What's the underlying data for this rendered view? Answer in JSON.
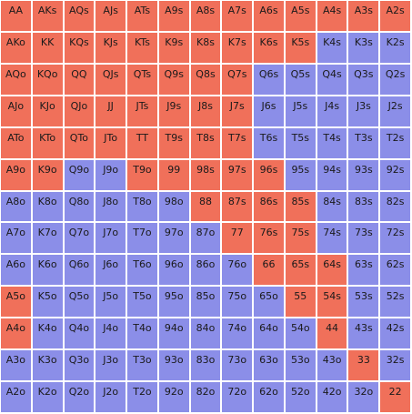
{
  "colors": {
    "raise": "#f0705a",
    "fold": "#8b8ee8"
  },
  "rows": [
    [
      [
        "AA",
        "r"
      ],
      [
        "AKs",
        "r"
      ],
      [
        "AQs",
        "r"
      ],
      [
        "AJs",
        "r"
      ],
      [
        "ATs",
        "r"
      ],
      [
        "A9s",
        "r"
      ],
      [
        "A8s",
        "r"
      ],
      [
        "A7s",
        "r"
      ],
      [
        "A6s",
        "r"
      ],
      [
        "A5s",
        "r"
      ],
      [
        "A4s",
        "r"
      ],
      [
        "A3s",
        "r"
      ],
      [
        "A2s",
        "r"
      ]
    ],
    [
      [
        "AKo",
        "r"
      ],
      [
        "KK",
        "r"
      ],
      [
        "KQs",
        "r"
      ],
      [
        "KJs",
        "r"
      ],
      [
        "KTs",
        "r"
      ],
      [
        "K9s",
        "r"
      ],
      [
        "K8s",
        "r"
      ],
      [
        "K7s",
        "r"
      ],
      [
        "K6s",
        "r"
      ],
      [
        "K5s",
        "r"
      ],
      [
        "K4s",
        "f"
      ],
      [
        "K3s",
        "f"
      ],
      [
        "K2s",
        "f"
      ]
    ],
    [
      [
        "AQo",
        "r"
      ],
      [
        "KQo",
        "r"
      ],
      [
        "QQ",
        "r"
      ],
      [
        "QJs",
        "r"
      ],
      [
        "QTs",
        "r"
      ],
      [
        "Q9s",
        "r"
      ],
      [
        "Q8s",
        "r"
      ],
      [
        "Q7s",
        "r"
      ],
      [
        "Q6s",
        "f"
      ],
      [
        "Q5s",
        "f"
      ],
      [
        "Q4s",
        "f"
      ],
      [
        "Q3s",
        "f"
      ],
      [
        "Q2s",
        "f"
      ]
    ],
    [
      [
        "AJo",
        "r"
      ],
      [
        "KJo",
        "r"
      ],
      [
        "QJo",
        "r"
      ],
      [
        "JJ",
        "r"
      ],
      [
        "JTs",
        "r"
      ],
      [
        "J9s",
        "r"
      ],
      [
        "J8s",
        "r"
      ],
      [
        "J7s",
        "r"
      ],
      [
        "J6s",
        "f"
      ],
      [
        "J5s",
        "f"
      ],
      [
        "J4s",
        "f"
      ],
      [
        "J3s",
        "f"
      ],
      [
        "J2s",
        "f"
      ]
    ],
    [
      [
        "ATo",
        "r"
      ],
      [
        "KTo",
        "r"
      ],
      [
        "QTo",
        "r"
      ],
      [
        "JTo",
        "r"
      ],
      [
        "TT",
        "r"
      ],
      [
        "T9s",
        "r"
      ],
      [
        "T8s",
        "r"
      ],
      [
        "T7s",
        "r"
      ],
      [
        "T6s",
        "f"
      ],
      [
        "T5s",
        "f"
      ],
      [
        "T4s",
        "f"
      ],
      [
        "T3s",
        "f"
      ],
      [
        "T2s",
        "f"
      ]
    ],
    [
      [
        "A9o",
        "r"
      ],
      [
        "K9o",
        "r"
      ],
      [
        "Q9o",
        "f"
      ],
      [
        "J9o",
        "f"
      ],
      [
        "T9o",
        "r"
      ],
      [
        "99",
        "r"
      ],
      [
        "98s",
        "r"
      ],
      [
        "97s",
        "r"
      ],
      [
        "96s",
        "r"
      ],
      [
        "95s",
        "f"
      ],
      [
        "94s",
        "f"
      ],
      [
        "93s",
        "f"
      ],
      [
        "92s",
        "f"
      ]
    ],
    [
      [
        "A8o",
        "f"
      ],
      [
        "K8o",
        "f"
      ],
      [
        "Q8o",
        "f"
      ],
      [
        "J8o",
        "f"
      ],
      [
        "T8o",
        "f"
      ],
      [
        "98o",
        "f"
      ],
      [
        "88",
        "r"
      ],
      [
        "87s",
        "r"
      ],
      [
        "86s",
        "r"
      ],
      [
        "85s",
        "r"
      ],
      [
        "84s",
        "f"
      ],
      [
        "83s",
        "f"
      ],
      [
        "82s",
        "f"
      ]
    ],
    [
      [
        "A7o",
        "f"
      ],
      [
        "K7o",
        "f"
      ],
      [
        "Q7o",
        "f"
      ],
      [
        "J7o",
        "f"
      ],
      [
        "T7o",
        "f"
      ],
      [
        "97o",
        "f"
      ],
      [
        "87o",
        "f"
      ],
      [
        "77",
        "r"
      ],
      [
        "76s",
        "r"
      ],
      [
        "75s",
        "r"
      ],
      [
        "74s",
        "f"
      ],
      [
        "73s",
        "f"
      ],
      [
        "72s",
        "f"
      ]
    ],
    [
      [
        "A6o",
        "f"
      ],
      [
        "K6o",
        "f"
      ],
      [
        "Q6o",
        "f"
      ],
      [
        "J6o",
        "f"
      ],
      [
        "T6o",
        "f"
      ],
      [
        "96o",
        "f"
      ],
      [
        "86o",
        "f"
      ],
      [
        "76o",
        "f"
      ],
      [
        "66",
        "r"
      ],
      [
        "65s",
        "r"
      ],
      [
        "64s",
        "r"
      ],
      [
        "63s",
        "f"
      ],
      [
        "62s",
        "f"
      ]
    ],
    [
      [
        "A5o",
        "r"
      ],
      [
        "K5o",
        "f"
      ],
      [
        "Q5o",
        "f"
      ],
      [
        "J5o",
        "f"
      ],
      [
        "T5o",
        "f"
      ],
      [
        "95o",
        "f"
      ],
      [
        "85o",
        "f"
      ],
      [
        "75o",
        "f"
      ],
      [
        "65o",
        "f"
      ],
      [
        "55",
        "r"
      ],
      [
        "54s",
        "r"
      ],
      [
        "53s",
        "f"
      ],
      [
        "52s",
        "f"
      ]
    ],
    [
      [
        "A4o",
        "r"
      ],
      [
        "K4o",
        "f"
      ],
      [
        "Q4o",
        "f"
      ],
      [
        "J4o",
        "f"
      ],
      [
        "T4o",
        "f"
      ],
      [
        "94o",
        "f"
      ],
      [
        "84o",
        "f"
      ],
      [
        "74o",
        "f"
      ],
      [
        "64o",
        "f"
      ],
      [
        "54o",
        "f"
      ],
      [
        "44",
        "r"
      ],
      [
        "43s",
        "f"
      ],
      [
        "42s",
        "f"
      ]
    ],
    [
      [
        "A3o",
        "f"
      ],
      [
        "K3o",
        "f"
      ],
      [
        "Q3o",
        "f"
      ],
      [
        "J3o",
        "f"
      ],
      [
        "T3o",
        "f"
      ],
      [
        "93o",
        "f"
      ],
      [
        "83o",
        "f"
      ],
      [
        "73o",
        "f"
      ],
      [
        "63o",
        "f"
      ],
      [
        "53o",
        "f"
      ],
      [
        "43o",
        "f"
      ],
      [
        "33",
        "r"
      ],
      [
        "32s",
        "f"
      ]
    ],
    [
      [
        "A2o",
        "f"
      ],
      [
        "K2o",
        "f"
      ],
      [
        "Q2o",
        "f"
      ],
      [
        "J2o",
        "f"
      ],
      [
        "T2o",
        "f"
      ],
      [
        "92o",
        "f"
      ],
      [
        "82o",
        "f"
      ],
      [
        "72o",
        "f"
      ],
      [
        "62o",
        "f"
      ],
      [
        "52o",
        "f"
      ],
      [
        "42o",
        "f"
      ],
      [
        "32o",
        "f"
      ],
      [
        "22",
        "r"
      ]
    ]
  ]
}
